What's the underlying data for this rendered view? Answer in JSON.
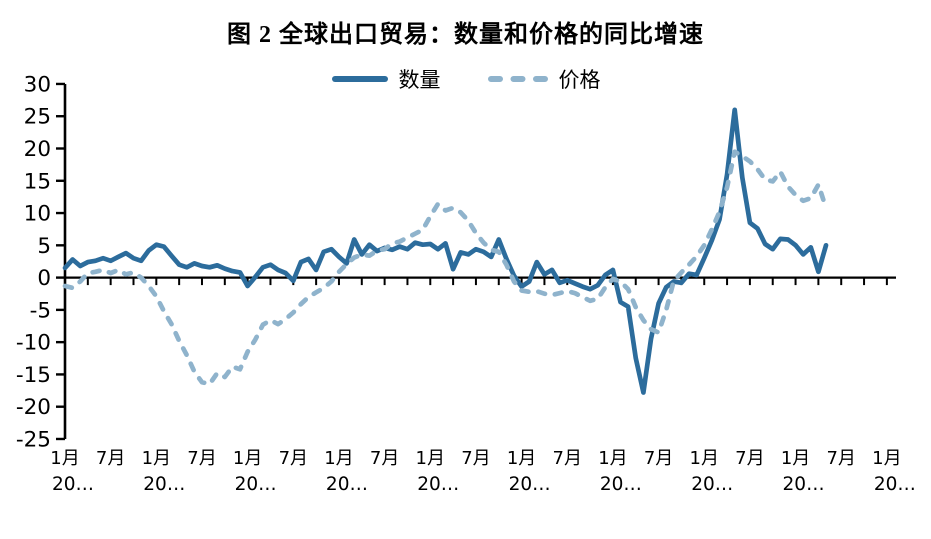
{
  "chart": {
    "title": "图 2 全球出口贸易：数量和价格的同比增速",
    "legend": [
      {
        "label": "数量",
        "color": "#2C6C9C",
        "style": "solid"
      },
      {
        "label": "价格",
        "color": "#8FB3CC",
        "style": "dashed"
      }
    ]
  },
  "chart_data": {
    "type": "line",
    "title": "图 2 全球出口贸易：数量和价格的同比增速",
    "xlabel": "",
    "ylabel": "",
    "x_unit": "month",
    "x_start": "2014-01",
    "x_end": "2022-05",
    "ylim": [
      -25,
      30
    ],
    "grid": false,
    "legend_position": "top-center",
    "y_ticks": [
      30,
      25,
      20,
      15,
      10,
      5,
      0,
      -5,
      -10,
      -15,
      -20,
      -25
    ],
    "x_tick_interval_months": 3,
    "x_label_interval_months": 6,
    "x_axis_labels": [
      "1月",
      "7月",
      "1月",
      "7月",
      "1月",
      "7月",
      "1月",
      "7月",
      "1月",
      "7月",
      "1月",
      "7月",
      "1月",
      "7月",
      "1月",
      "7月",
      "1月",
      "7月",
      "1月"
    ],
    "x_axis_year_labels": [
      "20…",
      "20…",
      "20…",
      "20…",
      "20…",
      "20…",
      "20…",
      "20…",
      "20…",
      "20…"
    ],
    "series": [
      {
        "name": "数量",
        "color": "#2C6C9C",
        "line_style": "solid",
        "values": [
          1.5,
          2.8,
          1.8,
          2.4,
          2.6,
          3.0,
          2.6,
          3.2,
          3.8,
          3.0,
          2.6,
          4.2,
          5.1,
          4.8,
          3.4,
          2.0,
          1.6,
          2.2,
          1.8,
          1.6,
          1.9,
          1.4,
          1.0,
          0.8,
          -1.3,
          0.1,
          1.6,
          2.0,
          1.2,
          0.7,
          -0.5,
          2.4,
          2.9,
          1.2,
          4.0,
          4.4,
          3.2,
          2.2,
          5.9,
          3.6,
          5.1,
          4.1,
          4.6,
          4.3,
          4.8,
          4.4,
          5.4,
          5.1,
          5.2,
          4.4,
          5.3,
          1.3,
          3.9,
          3.6,
          4.4,
          4.0,
          3.2,
          5.9,
          2.9,
          0.3,
          -1.4,
          -0.6,
          2.4,
          0.5,
          1.2,
          -0.8,
          -0.4,
          -0.9,
          -1.4,
          -1.8,
          -1.2,
          0.4,
          1.2,
          -3.8,
          -4.5,
          -12.5,
          -17.8,
          -9.5,
          -4.0,
          -1.5,
          -0.6,
          -0.8,
          0.6,
          0.4,
          3.0,
          5.8,
          9.0,
          16.0,
          26.0,
          15.5,
          8.5,
          7.6,
          5.2,
          4.4,
          6.0,
          5.9,
          5.0,
          3.6,
          4.7,
          0.9,
          5.0
        ]
      },
      {
        "name": "价格",
        "color": "#8FB3CC",
        "line_style": "dashed",
        "values": [
          -1.3,
          -1.6,
          -0.6,
          0.7,
          0.9,
          1.2,
          0.7,
          1.2,
          0.5,
          0.8,
          0.0,
          -1.3,
          -2.9,
          -5.2,
          -7.2,
          -9.8,
          -12.0,
          -14.6,
          -16.2,
          -16.5,
          -14.8,
          -15.4,
          -13.8,
          -14.2,
          -11.5,
          -9.6,
          -7.3,
          -6.6,
          -7.2,
          -6.4,
          -5.4,
          -4.1,
          -3.0,
          -2.3,
          -1.6,
          -0.6,
          0.9,
          2.1,
          3.1,
          3.6,
          3.4,
          4.2,
          4.4,
          5.3,
          5.6,
          6.2,
          6.8,
          7.4,
          9.5,
          11.4,
          10.4,
          10.8,
          10.1,
          8.8,
          6.9,
          5.4,
          4.3,
          4.0,
          2.0,
          -0.6,
          -2.0,
          -2.2,
          -2.1,
          -2.5,
          -2.7,
          -2.4,
          -2.1,
          -2.4,
          -3.0,
          -3.6,
          -3.3,
          -1.5,
          -0.2,
          -0.6,
          -1.8,
          -4.6,
          -6.6,
          -8.0,
          -8.5,
          -5.0,
          -0.5,
          0.8,
          2.0,
          3.3,
          5.0,
          7.5,
          10.2,
          14.0,
          19.5,
          18.8,
          18.0,
          16.8,
          15.2,
          14.9,
          16.4,
          14.1,
          12.8,
          11.9,
          12.3,
          14.4,
          10.8
        ]
      }
    ]
  }
}
